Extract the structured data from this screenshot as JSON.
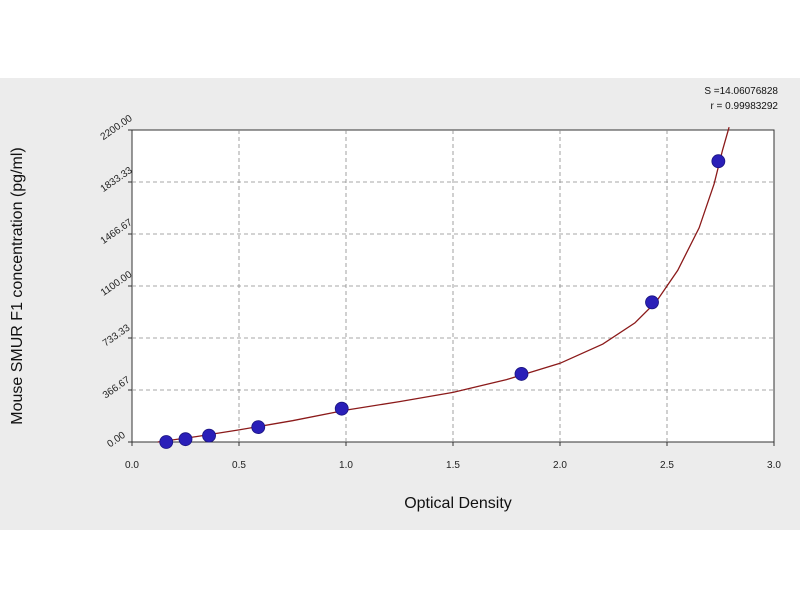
{
  "chart_data": {
    "type": "scatter",
    "title": "",
    "xlabel": "Optical Density",
    "ylabel": "Mouse SMUR F1 concentration (pg/ml)",
    "xlim": [
      0.0,
      3.0
    ],
    "ylim": [
      0.0,
      2200.0
    ],
    "x_ticks": [
      "0.0",
      "0.5",
      "1.0",
      "1.5",
      "2.0",
      "2.5",
      "3.0"
    ],
    "y_ticks": [
      "0.00",
      "366.67",
      "733.33",
      "1100.00",
      "1466.67",
      "1833.33",
      "2200.00"
    ],
    "grid": true,
    "stats": {
      "s_line": "S =14.06076828",
      "r_line": "r = 0.99983292"
    },
    "point_color": "#2a1fb8",
    "curve_color": "#8b1a1a",
    "series": [
      {
        "points": [
          {
            "x": 0.16,
            "y": 0
          },
          {
            "x": 0.25,
            "y": 20
          },
          {
            "x": 0.36,
            "y": 45
          },
          {
            "x": 0.59,
            "y": 105
          },
          {
            "x": 0.98,
            "y": 235
          },
          {
            "x": 1.82,
            "y": 480
          },
          {
            "x": 2.43,
            "y": 985
          },
          {
            "x": 2.74,
            "y": 1980
          }
        ]
      }
    ],
    "fit_curve": [
      {
        "x": 0.12,
        "y": 0
      },
      {
        "x": 0.3,
        "y": 38
      },
      {
        "x": 0.5,
        "y": 85
      },
      {
        "x": 0.75,
        "y": 150
      },
      {
        "x": 1.0,
        "y": 225
      },
      {
        "x": 1.25,
        "y": 285
      },
      {
        "x": 1.5,
        "y": 350
      },
      {
        "x": 1.75,
        "y": 440
      },
      {
        "x": 2.0,
        "y": 555
      },
      {
        "x": 2.2,
        "y": 690
      },
      {
        "x": 2.35,
        "y": 840
      },
      {
        "x": 2.45,
        "y": 990
      },
      {
        "x": 2.55,
        "y": 1210
      },
      {
        "x": 2.65,
        "y": 1510
      },
      {
        "x": 2.72,
        "y": 1820
      },
      {
        "x": 2.76,
        "y": 2060
      },
      {
        "x": 2.79,
        "y": 2220
      }
    ]
  }
}
